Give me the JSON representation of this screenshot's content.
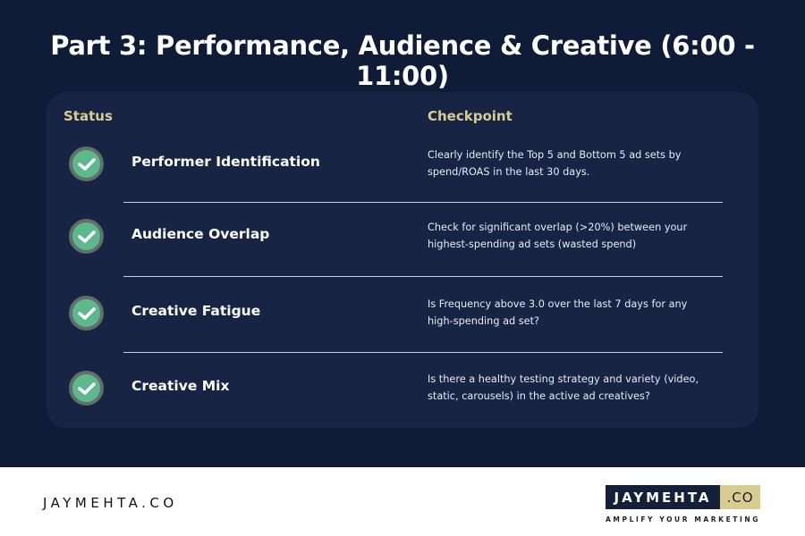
{
  "title": "Part 3: Performance, Audience & Creative (6:00 - 11:00)",
  "table": {
    "headers": {
      "status": "Status",
      "checkpoint": "Checkpoint"
    },
    "rows": [
      {
        "status": "checked",
        "name": "Performer Identification",
        "desc": "Clearly identify the Top 5 and Bottom 5 ad sets by spend/ROAS in the last 30 days."
      },
      {
        "status": "checked",
        "name": "Audience Overlap",
        "desc": "Check for significant overlap (>20%) between your highest-spending ad sets (wasted spend)"
      },
      {
        "status": "checked",
        "name": "Creative Fatigue",
        "desc": "Is Frequency above 3.0 over the last 7 days for any high-spending ad set?"
      },
      {
        "status": "checked",
        "name": "Creative Mix",
        "desc": "Is there a healthy testing strategy and variety (video, static, carousels) in the active ad creatives?"
      }
    ]
  },
  "footer": {
    "brand": "JAYMEHTA.CO",
    "logo_main": "JAYMEHTA",
    "logo_suffix": ".CO",
    "tagline": "AMPLIFY YOUR MARKETING"
  },
  "colors": {
    "background": "#0e1c38",
    "card": "#172444",
    "accent": "#d9cc8f",
    "check": "#5db88c"
  }
}
